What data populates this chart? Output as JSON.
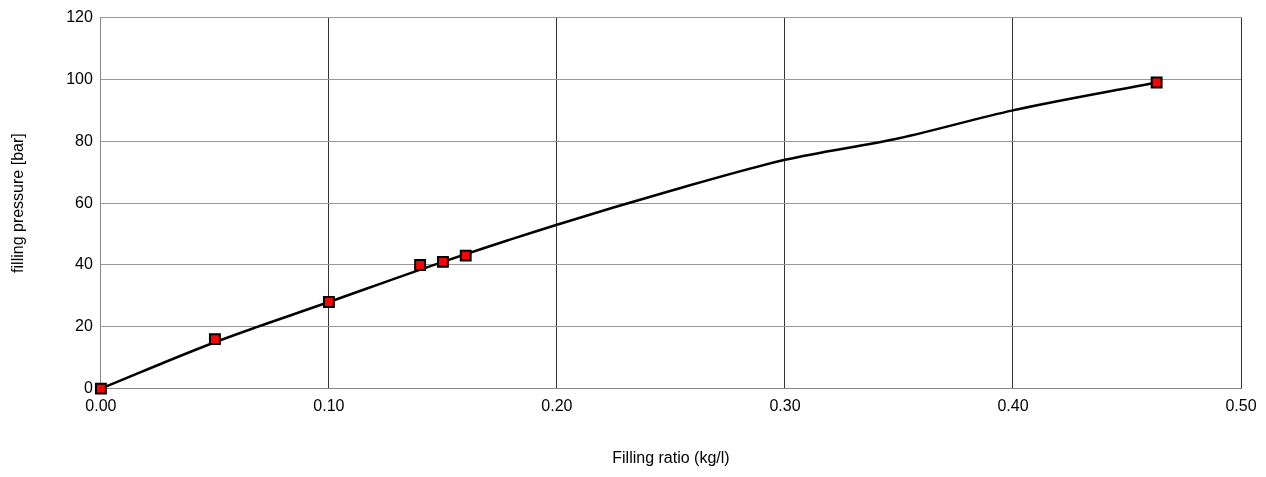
{
  "chart_data": {
    "type": "scatter",
    "xlabel": "Filling ratio (kg/l)",
    "ylabel": "filling pressure [bar]",
    "xlim": [
      0,
      0.5
    ],
    "xticks": [
      {
        "value": 0,
        "label": "0.00"
      },
      {
        "value": 0.1,
        "label": "0.10"
      },
      {
        "value": 0.2,
        "label": "0.20"
      },
      {
        "value": 0.3,
        "label": "0.30"
      },
      {
        "value": 0.4,
        "label": "0.40"
      },
      {
        "value": 0.5,
        "label": "0.50"
      }
    ],
    "ylim": [
      0,
      120
    ],
    "yticks": [
      0,
      20,
      40,
      60,
      80,
      100,
      120
    ],
    "grid": true,
    "legend": false,
    "marker": "square",
    "series": [
      {
        "type": "line",
        "marker": "none",
        "color": "#000000",
        "x": [
          0,
          0.05,
          0.1,
          0.15,
          0.2,
          0.25,
          0.3,
          0.35,
          0.4,
          0.463
        ],
        "values": [
          0,
          15,
          28,
          41,
          53,
          64,
          74,
          81,
          90,
          99
        ]
      },
      {
        "color": "#ff0000",
        "x": [
          0,
          0.05,
          0.1,
          0.14,
          0.15,
          0.16,
          0.463
        ],
        "values": [
          0,
          16,
          28,
          40,
          41,
          43,
          99
        ]
      }
    ]
  }
}
